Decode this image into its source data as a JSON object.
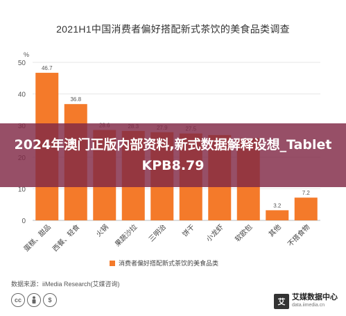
{
  "chart_data": {
    "type": "bar",
    "title": "2021H1中国消费者偏好搭配新式茶饮的美食品类调查",
    "ylabel": "%",
    "xlabel": "",
    "ylim": [
      0,
      50
    ],
    "yticks": [
      0,
      10,
      20,
      30,
      40,
      50
    ],
    "categories": [
      "蛋糕、甜品",
      "西餐、轻食",
      "火锅",
      "果蔬沙拉",
      "三明治",
      "饼干",
      "小龙虾",
      "软欧包",
      "其他",
      "不搭食物"
    ],
    "series": [
      {
        "name": "消费者偏好搭配新式茶饮的美食品类",
        "values": [
          46.7,
          36.8,
          28.6,
          28.3,
          27.9,
          27.5,
          27.0,
          26.0,
          3.2,
          7.2
        ]
      }
    ],
    "value_labels": [
      "46.7",
      "36.8",
      "28.6",
      "28.3",
      "27.9",
      "27.5",
      "",
      "",
      "3.2",
      "7.2"
    ],
    "grid": "horizontal",
    "legend_position": "bottom",
    "bar_color": "#f47a2a"
  },
  "overlay": {
    "text": "2024年澳门正版内部资料,新式数据解释设想_TabletKPB8.79"
  },
  "source_text": "数据来源：iiMedia Research(艾媒咨询)",
  "brand": {
    "logo_char": "艾",
    "name": "艾媒数据中心",
    "url": "data.iimedia.cn"
  },
  "license_icons": [
    "cc-icon",
    "person-icon",
    "nc-icon"
  ],
  "colors": {
    "bar": "#f47a2a",
    "overlay": "#802846",
    "grid": "#e6e6e6",
    "axis_text": "#555555"
  }
}
